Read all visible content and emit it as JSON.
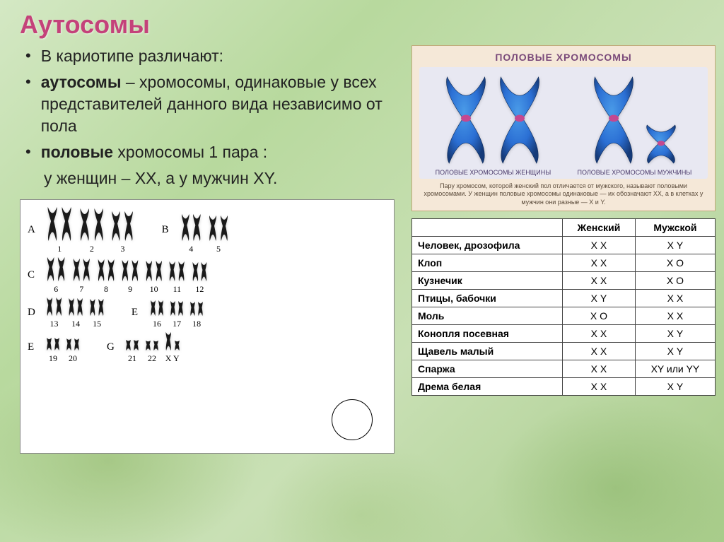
{
  "title": "Аутосомы",
  "bullets": [
    {
      "plain": "В кариотипе различают:"
    },
    {
      "pre_bold": "аутосомы",
      "rest": " – хромосомы, одинаковые у всех представителей данного вида независимо от пола"
    },
    {
      "pre_bold": "половые",
      "rest": " хромосомы 1 пара :"
    }
  ],
  "indent_line": "у женщин – ХХ, а у мужчин ХY.",
  "karyotype": {
    "background": "#ffffff",
    "chrom_color": "#1a1a1a",
    "rows": [
      {
        "label": "A",
        "split_label": "B",
        "split_at": 3,
        "pairs": [
          {
            "n": "1",
            "h": 52
          },
          {
            "n": "2",
            "h": 50
          },
          {
            "n": "3",
            "h": 46
          },
          {
            "n": "4",
            "h": 42
          },
          {
            "n": "5",
            "h": 40
          }
        ]
      },
      {
        "label": "C",
        "pairs": [
          {
            "n": "6",
            "h": 38
          },
          {
            "n": "7",
            "h": 36
          },
          {
            "n": "8",
            "h": 35
          },
          {
            "n": "9",
            "h": 34
          },
          {
            "n": "10",
            "h": 33
          },
          {
            "n": "11",
            "h": 32
          },
          {
            "n": "12",
            "h": 31
          }
        ]
      },
      {
        "label": "D",
        "split_label": "E",
        "split_at": 3,
        "pairs": [
          {
            "n": "13",
            "h": 30
          },
          {
            "n": "14",
            "h": 29
          },
          {
            "n": "15",
            "h": 28
          },
          {
            "n": "16",
            "h": 26
          },
          {
            "n": "17",
            "h": 25
          },
          {
            "n": "18",
            "h": 24
          }
        ]
      },
      {
        "label": "E",
        "split_label": "G",
        "split_at": 2,
        "pairs": [
          {
            "n": "19",
            "h": 22
          },
          {
            "n": "20",
            "h": 21
          },
          {
            "n": "21",
            "h": 19
          },
          {
            "n": "22",
            "h": 18
          },
          {
            "n": "X",
            "h": 30,
            "second_h": 18,
            "second_n": "Y"
          }
        ]
      }
    ]
  },
  "sexbox": {
    "title": "ПОЛОВЫЕ ХРОМОСОМЫ",
    "female_caption": "ПОЛОВЫЕ ХРОМОСОМЫ ЖЕНЩИНЫ",
    "male_caption": "ПОЛОВЫЕ ХРОМОСОМЫ МУЖЧИНЫ",
    "note": "Пару хромосом, которой женский пол отличается от мужского, называют половыми хромосомами. У женщин половые хромосомы одинаковые — их обозначают XX, а в клетках у мужчин они разные — X и Y.",
    "colors": {
      "outer": "#2b6fd4",
      "mid": "#4a9be8",
      "inner": "#c44890",
      "bg": "#e8e8f2"
    }
  },
  "table": {
    "headers": [
      "",
      "Женский",
      "Мужской"
    ],
    "rows": [
      {
        "sp": "Человек, дрозофила",
        "f": "Х Х",
        "m": "Х Y"
      },
      {
        "sp": "Клоп",
        "f": "Х Х",
        "m": "Х О"
      },
      {
        "sp": "Кузнечик",
        "f": "Х Х",
        "m": "Х О"
      },
      {
        "sp": "Птицы, бабочки",
        "f": "Х Y",
        "m": "Х Х"
      },
      {
        "sp": "Моль",
        "f": "Х О",
        "m": "Х Х"
      },
      {
        "sp": "Конопля посевная",
        "f": "Х Х",
        "m": "Х Y"
      },
      {
        "sp": "Щавель малый",
        "f": "Х Х",
        "m": "Х Y"
      },
      {
        "sp": "Спаржа",
        "f": "Х Х",
        "m": "ХY или YY"
      },
      {
        "sp": "Дрема белая",
        "f": "Х Х",
        "m": "Х Y"
      }
    ]
  }
}
